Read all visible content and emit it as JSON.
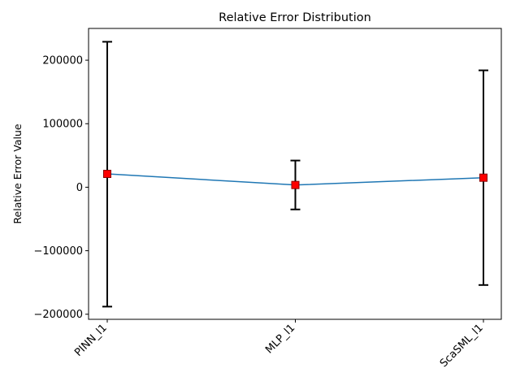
{
  "chart_data": {
    "type": "line",
    "title": "Relative Error Distribution",
    "xlabel": "",
    "ylabel": "Relative Error Value",
    "categories": [
      "PINN_l1",
      "MLP_l1",
      "ScaSML_l1"
    ],
    "series": [
      {
        "values": [
          21000,
          3500,
          15000
        ],
        "error_low": [
          -188000,
          -35000,
          -154000
        ],
        "error_high": [
          229000,
          42000,
          184000
        ]
      }
    ],
    "ylim": [
      -208000,
      250000
    ],
    "yticks": [
      -200000,
      -100000,
      0,
      100000,
      200000
    ],
    "ytick_labels": [
      "−200000",
      "−100000",
      "0",
      "100000",
      "200000"
    ],
    "grid": false,
    "colors": {
      "line": "#1f77b4",
      "marker_fill": "#ff0000",
      "marker_edge": "#8b0000",
      "error_bar": "#000000"
    }
  }
}
